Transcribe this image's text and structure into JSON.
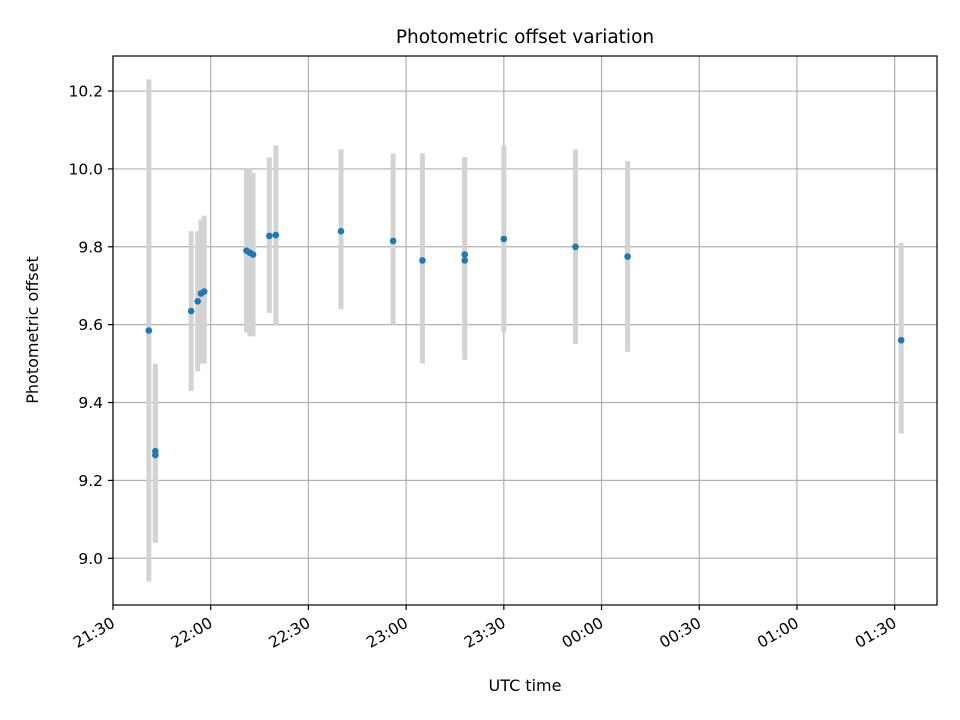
{
  "chart_data": {
    "type": "scatter",
    "title": "Photometric offset variation",
    "xlabel": "UTC time",
    "ylabel": "Photometric offset",
    "x_axis": {
      "kind": "time",
      "range": [
        "21:30",
        "01:43"
      ],
      "ticks": [
        "21:30",
        "22:00",
        "22:30",
        "23:00",
        "23:30",
        "00:00",
        "00:30",
        "01:00",
        "01:30"
      ]
    },
    "y_axis": {
      "range": [
        8.88,
        10.29
      ],
      "ticks": [
        9.0,
        9.2,
        9.4,
        9.6,
        9.8,
        10.0,
        10.2
      ],
      "tick_labels": [
        "9.0",
        "9.2",
        "9.4",
        "9.6",
        "9.8",
        "10.0",
        "10.2"
      ]
    },
    "grid": true,
    "error_bar_color": "#d3d3d3",
    "marker_color": "#1f77b4",
    "points": [
      {
        "x": "21:41",
        "y": 9.585,
        "low": 8.94,
        "high": 10.23
      },
      {
        "x": "21:43",
        "y": 9.275,
        "low": 9.04,
        "high": 9.5
      },
      {
        "x": "21:43",
        "y": 9.265,
        "low": 9.04,
        "high": 9.49
      },
      {
        "x": "21:54",
        "y": 9.635,
        "low": 9.43,
        "high": 9.84
      },
      {
        "x": "21:56",
        "y": 9.66,
        "low": 9.48,
        "high": 9.84
      },
      {
        "x": "21:57",
        "y": 9.68,
        "low": 9.5,
        "high": 9.87
      },
      {
        "x": "21:58",
        "y": 9.685,
        "low": 9.5,
        "high": 9.88
      },
      {
        "x": "22:11",
        "y": 9.79,
        "low": 9.58,
        "high": 10.0
      },
      {
        "x": "22:12",
        "y": 9.785,
        "low": 9.57,
        "high": 10.0
      },
      {
        "x": "22:13",
        "y": 9.78,
        "low": 9.57,
        "high": 9.99
      },
      {
        "x": "22:18",
        "y": 9.828,
        "low": 9.63,
        "high": 10.03
      },
      {
        "x": "22:20",
        "y": 9.83,
        "low": 9.6,
        "high": 10.06
      },
      {
        "x": "22:40",
        "y": 9.84,
        "low": 9.64,
        "high": 10.05
      },
      {
        "x": "22:56",
        "y": 9.815,
        "low": 9.6,
        "high": 10.04
      },
      {
        "x": "23:05",
        "y": 9.765,
        "low": 9.5,
        "high": 10.04
      },
      {
        "x": "23:18",
        "y": 9.765,
        "low": 9.51,
        "high": 10.03
      },
      {
        "x": "23:18",
        "y": 9.78,
        "low": 9.53,
        "high": 10.03
      },
      {
        "x": "23:30",
        "y": 9.82,
        "low": 9.58,
        "high": 10.06
      },
      {
        "x": "23:52",
        "y": 9.8,
        "low": 9.55,
        "high": 10.05
      },
      {
        "x": "00:08",
        "y": 9.775,
        "low": 9.53,
        "high": 10.02
      },
      {
        "x": "01:32",
        "y": 9.56,
        "low": 9.32,
        "high": 9.81
      }
    ]
  }
}
